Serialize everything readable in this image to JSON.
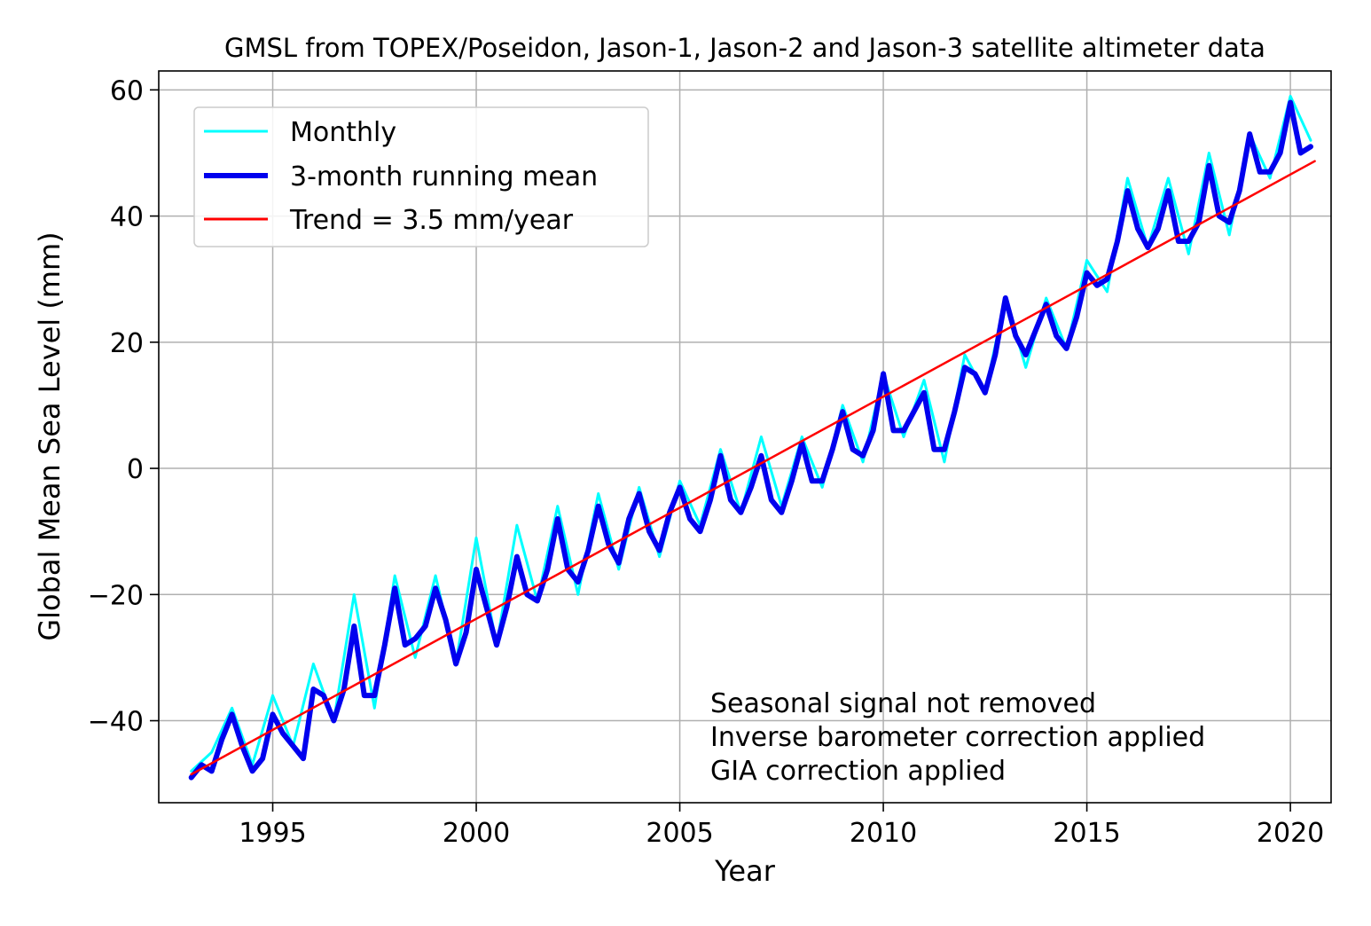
{
  "chart_data": {
    "type": "line",
    "title": "GMSL from TOPEX/Poseidon, Jason-1, Jason-2 and Jason-3 satellite altimeter data",
    "xlabel": "Year",
    "ylabel": "Global Mean Sea Level (mm)",
    "xlim": [
      1992.2,
      2021.0
    ],
    "ylim": [
      -53,
      63
    ],
    "xticks": [
      1995,
      2000,
      2005,
      2010,
      2015,
      2020
    ],
    "xtick_labels": [
      "1995",
      "2000",
      "2005",
      "2010",
      "2015",
      "2020"
    ],
    "yticks": [
      -40,
      -20,
      0,
      20,
      40,
      60
    ],
    "ytick_labels": [
      "−40",
      "−20",
      "0",
      "20",
      "40",
      "60"
    ],
    "grid": true,
    "legend_position": "top-left",
    "series": [
      {
        "name": "Monthly",
        "color": "#00ffff",
        "x": [
          1993.0,
          1993.5,
          1994.0,
          1994.5,
          1995.0,
          1995.5,
          1996.0,
          1996.5,
          1997.0,
          1997.5,
          1998.0,
          1998.5,
          1999.0,
          1999.5,
          2000.0,
          2000.5,
          2001.0,
          2001.5,
          2002.0,
          2002.5,
          2003.0,
          2003.5,
          2004.0,
          2004.5,
          2005.0,
          2005.5,
          2006.0,
          2006.5,
          2007.0,
          2007.5,
          2008.0,
          2008.5,
          2009.0,
          2009.5,
          2010.0,
          2010.5,
          2011.0,
          2011.5,
          2012.0,
          2012.5,
          2013.0,
          2013.5,
          2014.0,
          2014.5,
          2015.0,
          2015.5,
          2016.0,
          2016.5,
          2017.0,
          2017.5,
          2018.0,
          2018.5,
          2019.0,
          2019.5,
          2020.0,
          2020.5
        ],
        "y": [
          -48,
          -45,
          -38,
          -47,
          -36,
          -44,
          -31,
          -40,
          -20,
          -38,
          -17,
          -30,
          -17,
          -31,
          -11,
          -28,
          -9,
          -21,
          -6,
          -20,
          -4,
          -16,
          -3,
          -14,
          -2,
          -9,
          3,
          -7,
          5,
          -6,
          5,
          -3,
          10,
          1,
          15,
          5,
          14,
          1,
          18,
          12,
          27,
          16,
          27,
          19,
          33,
          28,
          46,
          35,
          46,
          34,
          50,
          37,
          53,
          46,
          59,
          52
        ]
      },
      {
        "name": "3-month running mean",
        "color": "#0000ee",
        "x": [
          1993.0,
          1993.25,
          1993.5,
          1993.75,
          1994.0,
          1994.25,
          1994.5,
          1994.75,
          1995.0,
          1995.25,
          1995.5,
          1995.75,
          1996.0,
          1996.25,
          1996.5,
          1996.75,
          1997.0,
          1997.25,
          1997.5,
          1997.75,
          1998.0,
          1998.25,
          1998.5,
          1998.75,
          1999.0,
          1999.25,
          1999.5,
          1999.75,
          2000.0,
          2000.25,
          2000.5,
          2000.75,
          2001.0,
          2001.25,
          2001.5,
          2001.75,
          2002.0,
          2002.25,
          2002.5,
          2002.75,
          2003.0,
          2003.25,
          2003.5,
          2003.75,
          2004.0,
          2004.25,
          2004.5,
          2004.75,
          2005.0,
          2005.25,
          2005.5,
          2005.75,
          2006.0,
          2006.25,
          2006.5,
          2006.75,
          2007.0,
          2007.25,
          2007.5,
          2007.75,
          2008.0,
          2008.25,
          2008.5,
          2008.75,
          2009.0,
          2009.25,
          2009.5,
          2009.75,
          2010.0,
          2010.25,
          2010.5,
          2010.75,
          2011.0,
          2011.25,
          2011.5,
          2011.75,
          2012.0,
          2012.25,
          2012.5,
          2012.75,
          2013.0,
          2013.25,
          2013.5,
          2013.75,
          2014.0,
          2014.25,
          2014.5,
          2014.75,
          2015.0,
          2015.25,
          2015.5,
          2015.75,
          2016.0,
          2016.25,
          2016.5,
          2016.75,
          2017.0,
          2017.25,
          2017.5,
          2017.75,
          2018.0,
          2018.25,
          2018.5,
          2018.75,
          2019.0,
          2019.25,
          2019.5,
          2019.75,
          2020.0,
          2020.25,
          2020.5
        ],
        "y": [
          -49,
          -47,
          -48,
          -43,
          -39,
          -44,
          -48,
          -46,
          -39,
          -42,
          -44,
          -46,
          -35,
          -36,
          -40,
          -35,
          -25,
          -36,
          -36,
          -28,
          -19,
          -28,
          -27,
          -25,
          -19,
          -24,
          -31,
          -26,
          -16,
          -22,
          -28,
          -22,
          -14,
          -20,
          -21,
          -16,
          -8,
          -16,
          -18,
          -13,
          -6,
          -12,
          -15,
          -8,
          -4,
          -10,
          -13,
          -7,
          -3,
          -8,
          -10,
          -5,
          2,
          -5,
          -7,
          -3,
          2,
          -5,
          -7,
          -2,
          4,
          -2,
          -2,
          3,
          9,
          3,
          2,
          6,
          15,
          6,
          6,
          9,
          12,
          3,
          3,
          9,
          16,
          15,
          12,
          18,
          27,
          21,
          18,
          22,
          26,
          21,
          19,
          24,
          31,
          29,
          30,
          36,
          44,
          38,
          35,
          38,
          44,
          36,
          36,
          39,
          48,
          40,
          39,
          44,
          53,
          47,
          47,
          50,
          58,
          50,
          51
        ]
      },
      {
        "name": "Trend = 3.5 mm/year",
        "color": "#ff0000",
        "x": [
          1993.0,
          2020.6
        ],
        "y": [
          -48.5,
          48.7
        ]
      }
    ],
    "annotations": [
      "Seasonal signal not removed",
      "Inverse barometer correction applied",
      "GIA correction applied"
    ]
  }
}
